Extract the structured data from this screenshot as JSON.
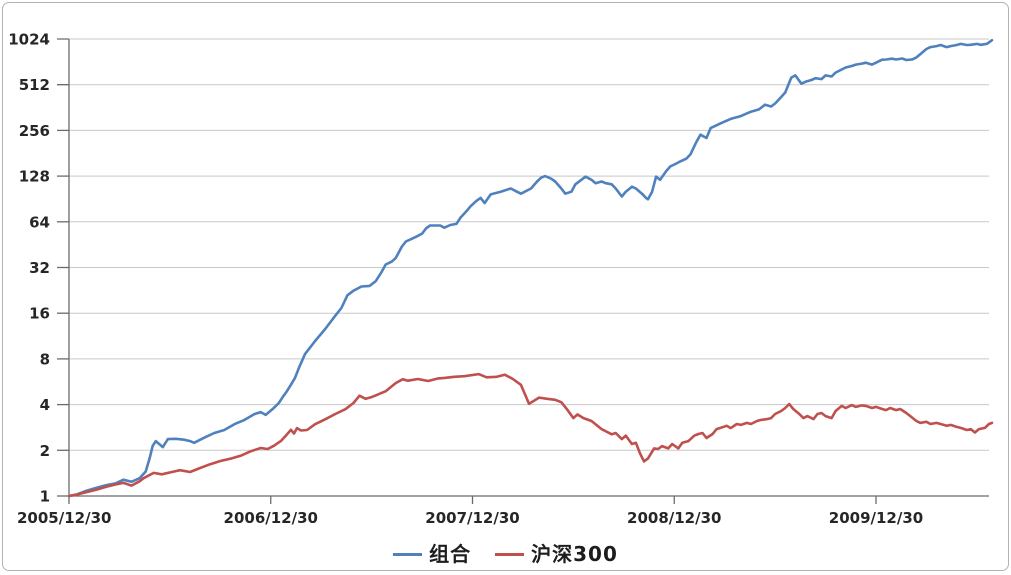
{
  "chart_data": {
    "type": "line",
    "title": "",
    "grid": "horizontal",
    "legend_position": "bottom",
    "x_axis": {
      "tick_labels": [
        "2005/12/30",
        "2006/12/30",
        "2007/12/30",
        "2008/12/30",
        "2009/12/30"
      ],
      "tick_positions_years": [
        0,
        1,
        2,
        3,
        4
      ],
      "range_years": [
        0,
        4.575
      ]
    },
    "y_axis": {
      "scale": "log2",
      "tick_values": [
        1,
        2,
        4,
        8,
        16,
        32,
        64,
        128,
        256,
        512,
        1024
      ],
      "tick_labels": [
        "1",
        "2",
        "4",
        "8",
        "16",
        "32",
        "64",
        "128",
        "256",
        "512",
        "1024"
      ],
      "range": [
        1,
        1024
      ]
    },
    "series": [
      {
        "name": "组合",
        "slug": "portfolio",
        "color": "#4f81bd",
        "points": [
          [
            0,
            1.0
          ],
          [
            0.035,
            1.02
          ],
          [
            0.085,
            1.08
          ],
          [
            0.135,
            1.13
          ],
          [
            0.185,
            1.18
          ],
          [
            0.23,
            1.21
          ],
          [
            0.27,
            1.28
          ],
          [
            0.31,
            1.24
          ],
          [
            0.35,
            1.31
          ],
          [
            0.38,
            1.45
          ],
          [
            0.4,
            1.78
          ],
          [
            0.415,
            2.14
          ],
          [
            0.43,
            2.3
          ],
          [
            0.465,
            2.1
          ],
          [
            0.49,
            2.37
          ],
          [
            0.53,
            2.38
          ],
          [
            0.57,
            2.35
          ],
          [
            0.6,
            2.3
          ],
          [
            0.62,
            2.24
          ],
          [
            0.67,
            2.42
          ],
          [
            0.72,
            2.6
          ],
          [
            0.77,
            2.72
          ],
          [
            0.82,
            2.97
          ],
          [
            0.87,
            3.17
          ],
          [
            0.92,
            3.47
          ],
          [
            0.95,
            3.57
          ],
          [
            0.975,
            3.42
          ],
          [
            1.01,
            3.75
          ],
          [
            1.04,
            4.1
          ],
          [
            1.06,
            4.5
          ],
          [
            1.08,
            4.9
          ],
          [
            1.1,
            5.4
          ],
          [
            1.12,
            6.0
          ],
          [
            1.14,
            7.0
          ],
          [
            1.17,
            8.6
          ],
          [
            1.22,
            10.5
          ],
          [
            1.27,
            12.6
          ],
          [
            1.32,
            15.4
          ],
          [
            1.35,
            17.3
          ],
          [
            1.38,
            21.0
          ],
          [
            1.41,
            22.5
          ],
          [
            1.45,
            24.0
          ],
          [
            1.49,
            24.2
          ],
          [
            1.52,
            26.0
          ],
          [
            1.55,
            30.0
          ],
          [
            1.57,
            33.5
          ],
          [
            1.6,
            35.0
          ],
          [
            1.62,
            37.0
          ],
          [
            1.65,
            44.0
          ],
          [
            1.67,
            47.5
          ],
          [
            1.7,
            49.5
          ],
          [
            1.72,
            51.0
          ],
          [
            1.75,
            53.5
          ],
          [
            1.77,
            58.0
          ],
          [
            1.79,
            60.5
          ],
          [
            1.84,
            60.5
          ],
          [
            1.86,
            58.5
          ],
          [
            1.89,
            61.0
          ],
          [
            1.92,
            62.0
          ],
          [
            1.94,
            68.0
          ],
          [
            1.97,
            75.0
          ],
          [
            1.99,
            81.0
          ],
          [
            2.02,
            88.0
          ],
          [
            2.04,
            92.0
          ],
          [
            2.06,
            85.0
          ],
          [
            2.09,
            97.0
          ],
          [
            2.14,
            101
          ],
          [
            2.19,
            106
          ],
          [
            2.22,
            101
          ],
          [
            2.24,
            98
          ],
          [
            2.29,
            106
          ],
          [
            2.32,
            118
          ],
          [
            2.34,
            125
          ],
          [
            2.36,
            128
          ],
          [
            2.39,
            123
          ],
          [
            2.41,
            118
          ],
          [
            2.44,
            106
          ],
          [
            2.46,
            98
          ],
          [
            2.49,
            101
          ],
          [
            2.51,
            113
          ],
          [
            2.54,
            121
          ],
          [
            2.56,
            127
          ],
          [
            2.59,
            121
          ],
          [
            2.61,
            115
          ],
          [
            2.64,
            118
          ],
          [
            2.66,
            115
          ],
          [
            2.69,
            113
          ],
          [
            2.71,
            106
          ],
          [
            2.74,
            94
          ],
          [
            2.76,
            101
          ],
          [
            2.79,
            109
          ],
          [
            2.81,
            106
          ],
          [
            2.84,
            98
          ],
          [
            2.86,
            92
          ],
          [
            2.87,
            90
          ],
          [
            2.89,
            101
          ],
          [
            2.91,
            127
          ],
          [
            2.93,
            121
          ],
          [
            2.96,
            138
          ],
          [
            2.98,
            148
          ],
          [
            3.01,
            155
          ],
          [
            3.03,
            160
          ],
          [
            3.06,
            167
          ],
          [
            3.08,
            178
          ],
          [
            3.11,
            215
          ],
          [
            3.13,
            240
          ],
          [
            3.16,
            228
          ],
          [
            3.18,
            265
          ],
          [
            3.23,
            285
          ],
          [
            3.28,
            305
          ],
          [
            3.33,
            318
          ],
          [
            3.38,
            340
          ],
          [
            3.42,
            352
          ],
          [
            3.45,
            378
          ],
          [
            3.48,
            368
          ],
          [
            3.5,
            385
          ],
          [
            3.53,
            425
          ],
          [
            3.55,
            455
          ],
          [
            3.58,
            570
          ],
          [
            3.6,
            590
          ],
          [
            3.63,
            520
          ],
          [
            3.65,
            535
          ],
          [
            3.68,
            550
          ],
          [
            3.7,
            565
          ],
          [
            3.73,
            557
          ],
          [
            3.75,
            590
          ],
          [
            3.78,
            580
          ],
          [
            3.8,
            615
          ],
          [
            3.83,
            645
          ],
          [
            3.85,
            665
          ],
          [
            3.88,
            680
          ],
          [
            3.9,
            695
          ],
          [
            3.93,
            705
          ],
          [
            3.95,
            715
          ],
          [
            3.98,
            695
          ],
          [
            4.0,
            715
          ],
          [
            4.03,
            748
          ],
          [
            4.05,
            750
          ],
          [
            4.08,
            760
          ],
          [
            4.1,
            750
          ],
          [
            4.13,
            762
          ],
          [
            4.15,
            745
          ],
          [
            4.18,
            752
          ],
          [
            4.2,
            775
          ],
          [
            4.22,
            815
          ],
          [
            4.25,
            880
          ],
          [
            4.27,
            905
          ],
          [
            4.3,
            920
          ],
          [
            4.32,
            935
          ],
          [
            4.35,
            905
          ],
          [
            4.37,
            920
          ],
          [
            4.4,
            935
          ],
          [
            4.42,
            950
          ],
          [
            4.45,
            935
          ],
          [
            4.47,
            938
          ],
          [
            4.5,
            950
          ],
          [
            4.52,
            938
          ],
          [
            4.55,
            952
          ],
          [
            4.575,
            1005
          ]
        ]
      },
      {
        "name": "沪深300",
        "slug": "csi300",
        "color": "#c0504d",
        "points": [
          [
            0,
            1.0
          ],
          [
            0.035,
            1.02
          ],
          [
            0.085,
            1.06
          ],
          [
            0.135,
            1.1
          ],
          [
            0.185,
            1.15
          ],
          [
            0.23,
            1.19
          ],
          [
            0.27,
            1.22
          ],
          [
            0.31,
            1.17
          ],
          [
            0.35,
            1.25
          ],
          [
            0.37,
            1.31
          ],
          [
            0.42,
            1.42
          ],
          [
            0.46,
            1.39
          ],
          [
            0.51,
            1.44
          ],
          [
            0.55,
            1.48
          ],
          [
            0.6,
            1.44
          ],
          [
            0.65,
            1.53
          ],
          [
            0.7,
            1.62
          ],
          [
            0.75,
            1.7
          ],
          [
            0.8,
            1.76
          ],
          [
            0.85,
            1.84
          ],
          [
            0.9,
            1.97
          ],
          [
            0.95,
            2.07
          ],
          [
            0.985,
            2.04
          ],
          [
            1.015,
            2.14
          ],
          [
            1.05,
            2.3
          ],
          [
            1.075,
            2.5
          ],
          [
            1.1,
            2.73
          ],
          [
            1.115,
            2.58
          ],
          [
            1.13,
            2.8
          ],
          [
            1.15,
            2.7
          ],
          [
            1.18,
            2.72
          ],
          [
            1.22,
            2.97
          ],
          [
            1.27,
            3.2
          ],
          [
            1.32,
            3.47
          ],
          [
            1.37,
            3.73
          ],
          [
            1.41,
            4.1
          ],
          [
            1.44,
            4.58
          ],
          [
            1.47,
            4.37
          ],
          [
            1.5,
            4.48
          ],
          [
            1.52,
            4.6
          ],
          [
            1.57,
            4.9
          ],
          [
            1.62,
            5.55
          ],
          [
            1.655,
            5.88
          ],
          [
            1.68,
            5.75
          ],
          [
            1.73,
            5.9
          ],
          [
            1.78,
            5.72
          ],
          [
            1.83,
            5.95
          ],
          [
            1.86,
            6.0
          ],
          [
            1.91,
            6.1
          ],
          [
            1.96,
            6.15
          ],
          [
            2.03,
            6.35
          ],
          [
            2.07,
            6.05
          ],
          [
            2.12,
            6.1
          ],
          [
            2.16,
            6.3
          ],
          [
            2.2,
            5.9
          ],
          [
            2.24,
            5.4
          ],
          [
            2.28,
            4.05
          ],
          [
            2.33,
            4.45
          ],
          [
            2.37,
            4.37
          ],
          [
            2.41,
            4.3
          ],
          [
            2.44,
            4.15
          ],
          [
            2.47,
            3.7
          ],
          [
            2.5,
            3.26
          ],
          [
            2.52,
            3.45
          ],
          [
            2.55,
            3.26
          ],
          [
            2.59,
            3.12
          ],
          [
            2.64,
            2.76
          ],
          [
            2.69,
            2.55
          ],
          [
            2.71,
            2.6
          ],
          [
            2.74,
            2.37
          ],
          [
            2.76,
            2.5
          ],
          [
            2.79,
            2.2
          ],
          [
            2.81,
            2.24
          ],
          [
            2.83,
            1.91
          ],
          [
            2.85,
            1.69
          ],
          [
            2.87,
            1.77
          ],
          [
            2.9,
            2.06
          ],
          [
            2.92,
            2.04
          ],
          [
            2.94,
            2.13
          ],
          [
            2.97,
            2.06
          ],
          [
            2.99,
            2.2
          ],
          [
            3.02,
            2.06
          ],
          [
            3.04,
            2.24
          ],
          [
            3.07,
            2.3
          ],
          [
            3.1,
            2.5
          ],
          [
            3.12,
            2.56
          ],
          [
            3.14,
            2.6
          ],
          [
            3.16,
            2.41
          ],
          [
            3.19,
            2.56
          ],
          [
            3.21,
            2.76
          ],
          [
            3.26,
            2.9
          ],
          [
            3.28,
            2.8
          ],
          [
            3.31,
            2.98
          ],
          [
            3.33,
            2.94
          ],
          [
            3.36,
            3.03
          ],
          [
            3.38,
            2.98
          ],
          [
            3.41,
            3.12
          ],
          [
            3.43,
            3.17
          ],
          [
            3.46,
            3.21
          ],
          [
            3.48,
            3.26
          ],
          [
            3.5,
            3.47
          ],
          [
            3.53,
            3.63
          ],
          [
            3.55,
            3.8
          ],
          [
            3.57,
            4.03
          ],
          [
            3.59,
            3.74
          ],
          [
            3.62,
            3.47
          ],
          [
            3.64,
            3.26
          ],
          [
            3.66,
            3.36
          ],
          [
            3.69,
            3.21
          ],
          [
            3.71,
            3.47
          ],
          [
            3.73,
            3.52
          ],
          [
            3.75,
            3.36
          ],
          [
            3.78,
            3.26
          ],
          [
            3.8,
            3.63
          ],
          [
            3.83,
            3.92
          ],
          [
            3.85,
            3.8
          ],
          [
            3.88,
            3.97
          ],
          [
            3.9,
            3.86
          ],
          [
            3.93,
            3.95
          ],
          [
            3.95,
            3.92
          ],
          [
            3.98,
            3.8
          ],
          [
            4.0,
            3.86
          ],
          [
            4.03,
            3.74
          ],
          [
            4.05,
            3.68
          ],
          [
            4.07,
            3.8
          ],
          [
            4.1,
            3.68
          ],
          [
            4.12,
            3.74
          ],
          [
            4.15,
            3.52
          ],
          [
            4.17,
            3.36
          ],
          [
            4.2,
            3.12
          ],
          [
            4.22,
            3.03
          ],
          [
            4.25,
            3.08
          ],
          [
            4.27,
            2.98
          ],
          [
            4.3,
            3.03
          ],
          [
            4.32,
            2.98
          ],
          [
            4.35,
            2.9
          ],
          [
            4.37,
            2.94
          ],
          [
            4.4,
            2.85
          ],
          [
            4.42,
            2.81
          ],
          [
            4.45,
            2.72
          ],
          [
            4.47,
            2.76
          ],
          [
            4.49,
            2.62
          ],
          [
            4.51,
            2.76
          ],
          [
            4.54,
            2.81
          ],
          [
            4.56,
            2.98
          ],
          [
            4.575,
            3.03
          ]
        ]
      }
    ]
  },
  "colors": {
    "background": "#ffffff",
    "frame_border": "#b3b3b3",
    "grid_line": "#c9c9c9",
    "axis_line": "#6b6b6b",
    "axis_text": "#262626",
    "legend_text": "#1d1d1d"
  }
}
